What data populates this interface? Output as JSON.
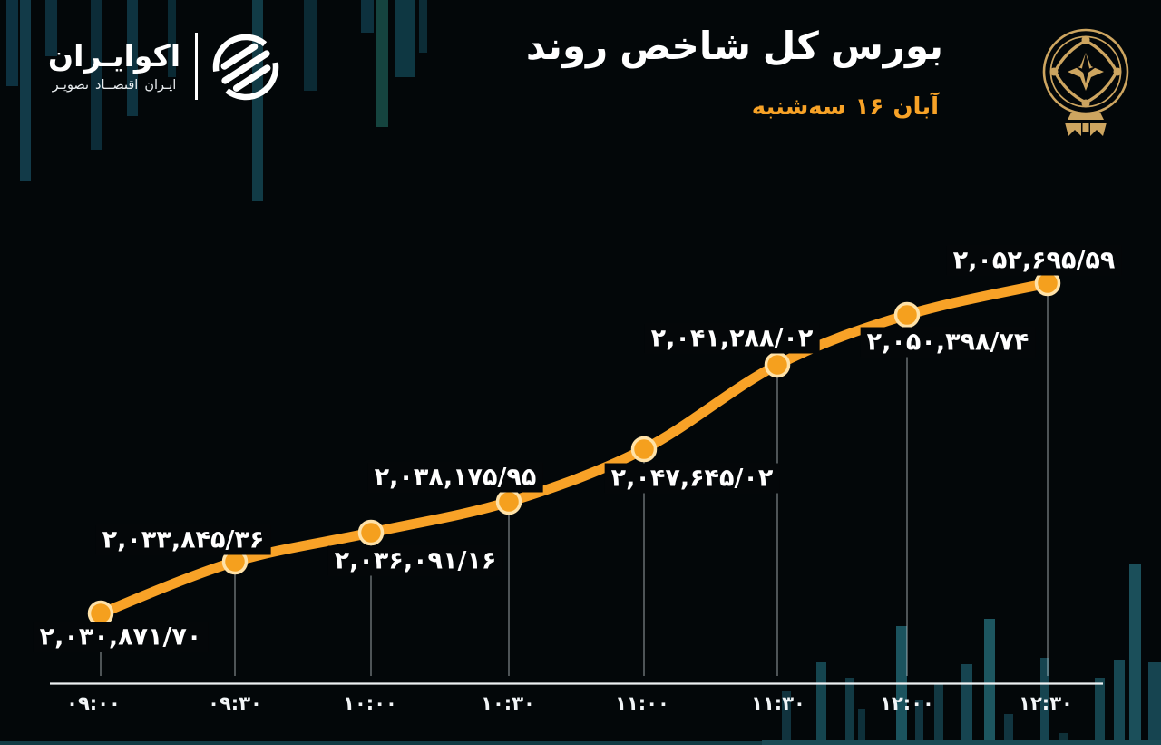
{
  "brand": {
    "name": "اکوایـران",
    "tagline_words": [
      "تصویـر",
      "اقتصــاد",
      "ایـران"
    ]
  },
  "header": {
    "title_words": [
      "روند",
      "شاخص",
      "کل",
      "بورس"
    ],
    "date_words": [
      "سه‌شنبه",
      "۱۶",
      "آبان"
    ]
  },
  "icons": {
    "brand_logo": "ecoiran-striped-globe",
    "emblem": "tehran-stock-exchange-gold-seal"
  },
  "colors": {
    "background": "#030709",
    "accent_orange": "#F8A227",
    "date_orange": "#F7A227",
    "emblem_gold": "#CDA560",
    "axis_white": "#EDF1F3",
    "bar_teal": "#17505C",
    "marker_fill": "#F5A01E",
    "marker_ring": "#FFE2A8",
    "label_white": "#FFFFFF"
  },
  "chart_data": {
    "type": "line",
    "title": "روند شاخص کل بورس",
    "subtitle_date": "سه‌شنبه ۱۶ آبان",
    "legend": [],
    "grid": false,
    "x_tick_labels_fa": [
      "۰۹:۰۰",
      "۰۹:۳۰",
      "۱۰:۰۰",
      "۱۰:۳۰",
      "۱۱:۰۰",
      "۱۱:۳۰",
      "۱۲:۰۰",
      "۱۲:۳۰"
    ],
    "x_tick_labels_en": [
      "09:00",
      "09:30",
      "10:00",
      "10:30",
      "11:00",
      "11:30",
      "12:00",
      "12:30"
    ],
    "ylim": [
      2028000,
      2055000
    ],
    "line_color": "#F8A227",
    "points": [
      {
        "time": "09:00",
        "label": "۲,۰۳۰,۸۷۱/۷۰",
        "value": 2030871.7,
        "label_side": "below"
      },
      {
        "time": "09:30",
        "label": "۲,۰۳۳,۸۴۵/۳۶",
        "value": 2033845.36,
        "label_side": "above"
      },
      {
        "time": "10:00",
        "label": "۲,۰۳۶,۰۹۱/۱۶",
        "value": 2036091.16,
        "label_side": "below"
      },
      {
        "time": "10:30",
        "label": "۲,۰۳۸,۱۷۵/۹۵",
        "value": 2038175.95,
        "label_side": "above"
      },
      {
        "time": "11:00",
        "label": "۲,۰۴۷,۶۴۵/۰۲",
        "value": 2047645.02,
        "label_side": "below"
      },
      {
        "time": "11:30",
        "label": "۲,۰۴۱,۲۸۸/۰۲",
        "value": 2041288.02,
        "label_side": "above"
      },
      {
        "time": "12:00",
        "label": "۲,۰۵۰,۳۹۸/۷۴",
        "value": 2050398.74,
        "label_side": "below"
      },
      {
        "time": "12:30",
        "label": "۲,۰۵۲,۶۹۵/۵۹",
        "value": 2052695.59,
        "label_side": "above"
      }
    ]
  }
}
